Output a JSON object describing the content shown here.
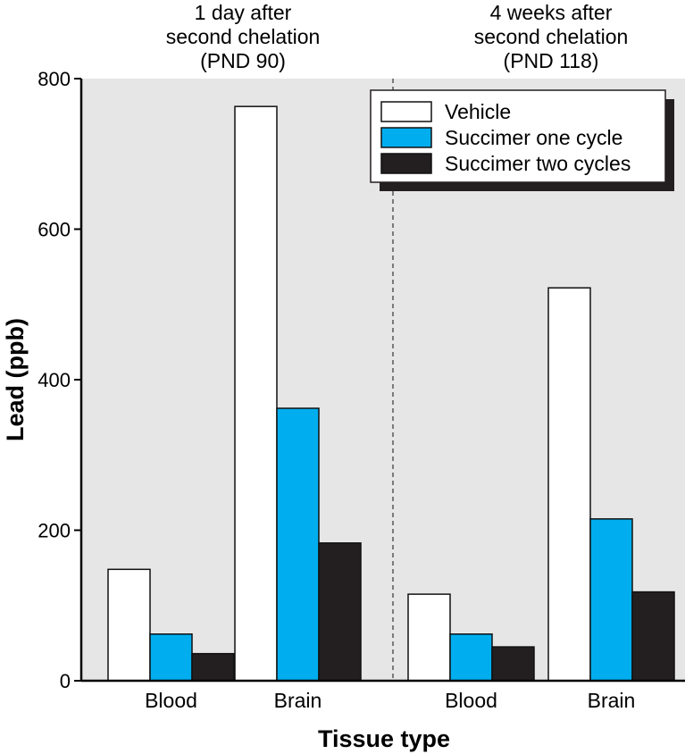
{
  "chart_data": {
    "type": "bar",
    "ylabel": "Lead (ppb)",
    "xlabel": "Tissue type",
    "ylim": [
      0,
      800
    ],
    "yticks": [
      0,
      200,
      400,
      600,
      800
    ],
    "grid": false,
    "legend_position": "top-right",
    "panels": [
      {
        "title_lines": [
          "1 day after",
          "second chelation",
          "(PND 90)"
        ],
        "categories": [
          "Blood",
          "Brain"
        ],
        "series": [
          {
            "name": "Vehicle",
            "values": [
              148,
              763
            ]
          },
          {
            "name": "Succimer one cycle",
            "values": [
              62,
              362
            ]
          },
          {
            "name": "Succimer two cycles",
            "values": [
              36,
              183
            ]
          }
        ]
      },
      {
        "title_lines": [
          "4 weeks after",
          "second chelation",
          "(PND 118)"
        ],
        "categories": [
          "Blood",
          "Brain"
        ],
        "series": [
          {
            "name": "Vehicle",
            "values": [
              115,
              522
            ]
          },
          {
            "name": "Succimer one cycle",
            "values": [
              62,
              215
            ]
          },
          {
            "name": "Succimer two cycles",
            "values": [
              45,
              118
            ]
          }
        ]
      }
    ],
    "colors": {
      "Vehicle": "#ffffff",
      "Succimer one cycle": "#00aeef",
      "Succimer two cycles": "#231f20",
      "plot_background": "#e6e6e6"
    }
  }
}
